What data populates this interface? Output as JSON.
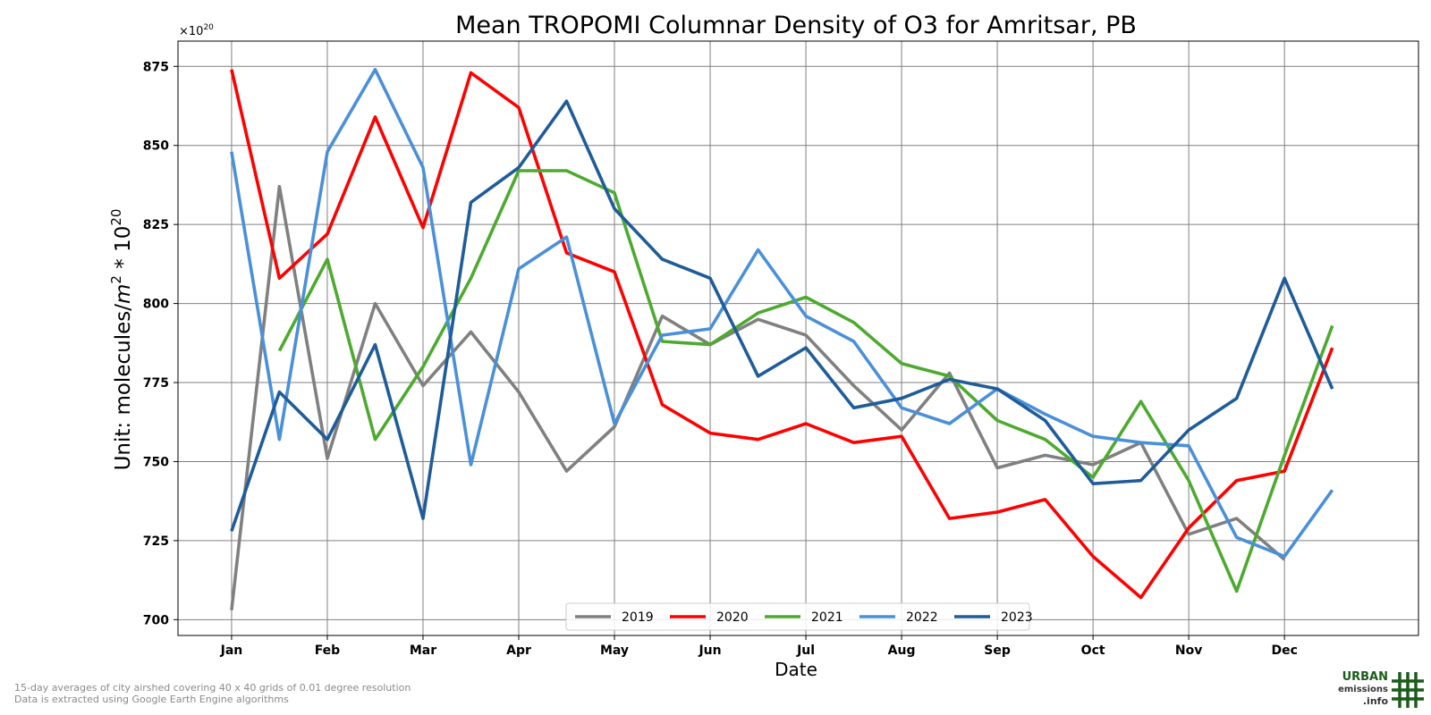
{
  "chart_data": {
    "type": "line",
    "title": "Mean TROPOMI Columnar Density of O3 for Amritsar, PB",
    "xlabel": "Date",
    "ylabel_base": "Unit: molecules/",
    "ylabel_m": "m",
    "ylabel_m_exp": "2",
    "ylabel_mult": " * 10",
    "ylabel_exp": "20",
    "y_offset_base": "×10",
    "y_offset_exp": "20",
    "x_ticks": [
      "Jan",
      "Feb",
      "Mar",
      "Apr",
      "May",
      "Jun",
      "Jul",
      "Aug",
      "Sep",
      "Oct",
      "Nov",
      "Dec"
    ],
    "y_ticks": [
      700,
      725,
      750,
      775,
      800,
      825,
      850,
      875
    ],
    "ylim": [
      695,
      883
    ],
    "xlim": [
      -0.56,
      12.4
    ],
    "grid": true,
    "legend_position": "bottom-center",
    "series": [
      {
        "name": "2019",
        "color": "#808080",
        "x": [
          0,
          0.5,
          1,
          1.5,
          2,
          2.5,
          3,
          3.5,
          4,
          4.5,
          5,
          5.5,
          6,
          6.5,
          7,
          7.5,
          8,
          8.5,
          9,
          9.5,
          10,
          10.5,
          11
        ],
        "values": [
          703,
          837,
          751,
          800,
          774,
          791,
          772,
          747,
          761,
          796,
          787,
          795,
          790,
          774,
          760,
          778,
          748,
          752,
          749,
          756,
          727,
          732,
          719
        ]
      },
      {
        "name": "2020",
        "color": "#ff0000",
        "x": [
          0,
          0.5,
          1,
          1.5,
          2,
          2.5,
          3,
          3.5,
          4,
          4.5,
          5,
          5.5,
          6,
          6.5,
          7,
          7.5,
          8,
          8.5,
          9,
          9.5,
          10,
          10.5,
          11,
          11.5
        ],
        "values": [
          874,
          808,
          822,
          859,
          824,
          873,
          862,
          816,
          810,
          768,
          759,
          757,
          762,
          756,
          758,
          732,
          734,
          738,
          720,
          707,
          729,
          744,
          747,
          786
        ]
      },
      {
        "name": "2021",
        "color": "#4daa2f",
        "x": [
          0.5,
          1,
          1.5,
          2,
          2.5,
          3,
          3.5,
          4,
          4.5,
          5,
          5.5,
          6,
          6.5,
          7,
          7.5,
          8,
          8.5,
          9,
          9.5,
          10,
          10.5,
          11,
          11.5
        ],
        "values": [
          785,
          814,
          757,
          780,
          808,
          842,
          842,
          835,
          788,
          787,
          797,
          802,
          794,
          781,
          777,
          763,
          757,
          745,
          769,
          744,
          709,
          752,
          793
        ]
      },
      {
        "name": "2022",
        "color": "#4a90d9",
        "x": [
          0,
          0.5,
          1,
          1.5,
          2,
          2.5,
          3,
          3.5,
          4,
          4.5,
          5,
          5.5,
          6,
          6.5,
          7,
          7.5,
          8,
          8.5,
          9,
          9.5,
          10,
          10.5,
          11,
          11.5
        ],
        "values": [
          848,
          757,
          848,
          874,
          843,
          749,
          811,
          821,
          762,
          790,
          792,
          817,
          796,
          788,
          767,
          762,
          773,
          765,
          758,
          756,
          755,
          726,
          720,
          741
        ]
      },
      {
        "name": "2023",
        "color": "#1f5c99",
        "x": [
          0,
          0.5,
          1,
          1.5,
          2,
          2.5,
          3,
          3.5,
          4,
          4.5,
          5,
          5.5,
          6,
          6.5,
          7,
          7.5,
          8,
          8.5,
          9,
          9.5,
          10,
          10.5,
          11,
          11.5
        ],
        "values": [
          728,
          772,
          757,
          787,
          732,
          832,
          843,
          864,
          830,
          814,
          808,
          777,
          786,
          767,
          770,
          776,
          773,
          763,
          743,
          744,
          760,
          770,
          808,
          773
        ]
      }
    ]
  },
  "footnotes": {
    "line1": "15-day averages of city airshed covering 40 x 40 grids of 0.01 degree resolution",
    "line2": "Data is extracted using Google Earth Engine algorithms"
  },
  "logo": {
    "line1": "URBAN",
    "line2": "emissions",
    "line3": ".info",
    "color": "#1a5c1a"
  }
}
